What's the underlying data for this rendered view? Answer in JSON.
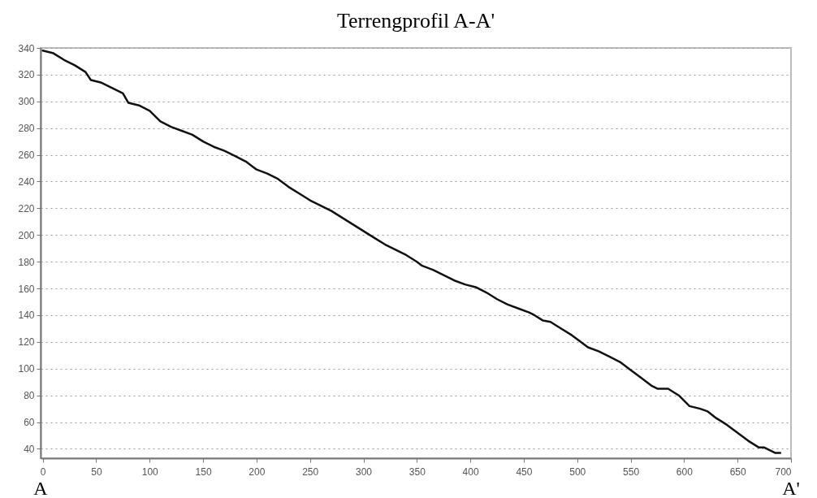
{
  "chart_data": {
    "type": "line",
    "title": "Terrengprofil A-A'",
    "annotations": [
      "A",
      "A'"
    ],
    "xlim": [
      -2,
      700
    ],
    "xticks": [
      0,
      50,
      100,
      150,
      200,
      250,
      300,
      350,
      400,
      450,
      500,
      550,
      600,
      650,
      700
    ],
    "ylim": [
      33,
      340
    ],
    "yticks": [
      40,
      60,
      80,
      100,
      120,
      140,
      160,
      180,
      200,
      220,
      240,
      260,
      280,
      300,
      320,
      340
    ],
    "grid": "y",
    "legend": false,
    "marker": "none",
    "line_style": "solid",
    "x": [
      0,
      10,
      20,
      30,
      40,
      45,
      55,
      65,
      75,
      80,
      90,
      100,
      110,
      120,
      130,
      140,
      150,
      160,
      170,
      180,
      190,
      200,
      210,
      220,
      230,
      240,
      250,
      260,
      270,
      280,
      290,
      300,
      310,
      320,
      330,
      340,
      350,
      355,
      365,
      375,
      385,
      395,
      405,
      415,
      425,
      435,
      445,
      455,
      460,
      468,
      475,
      485,
      495,
      505,
      510,
      520,
      530,
      540,
      550,
      560,
      570,
      575,
      585,
      595,
      605,
      615,
      622,
      630,
      640,
      650,
      660,
      670,
      675,
      685,
      690
    ],
    "series": [
      {
        "color": "#111111",
        "values": [
          338,
          336,
          331,
          327,
          322,
          316,
          314,
          310,
          306,
          299,
          297,
          293,
          285,
          281,
          278,
          275,
          270,
          266,
          263,
          259,
          255,
          249,
          246,
          242,
          236,
          231,
          226,
          222,
          218,
          213,
          208,
          203,
          198,
          193,
          189,
          185,
          180,
          177,
          174,
          170,
          166,
          163,
          161,
          157,
          152,
          148,
          145,
          142,
          140,
          136,
          135,
          130,
          125,
          119,
          116,
          113,
          109,
          105,
          99,
          93,
          87,
          85,
          85,
          80,
          72,
          70,
          68,
          63,
          58,
          52,
          46,
          41,
          41,
          37,
          37
        ]
      }
    ]
  }
}
